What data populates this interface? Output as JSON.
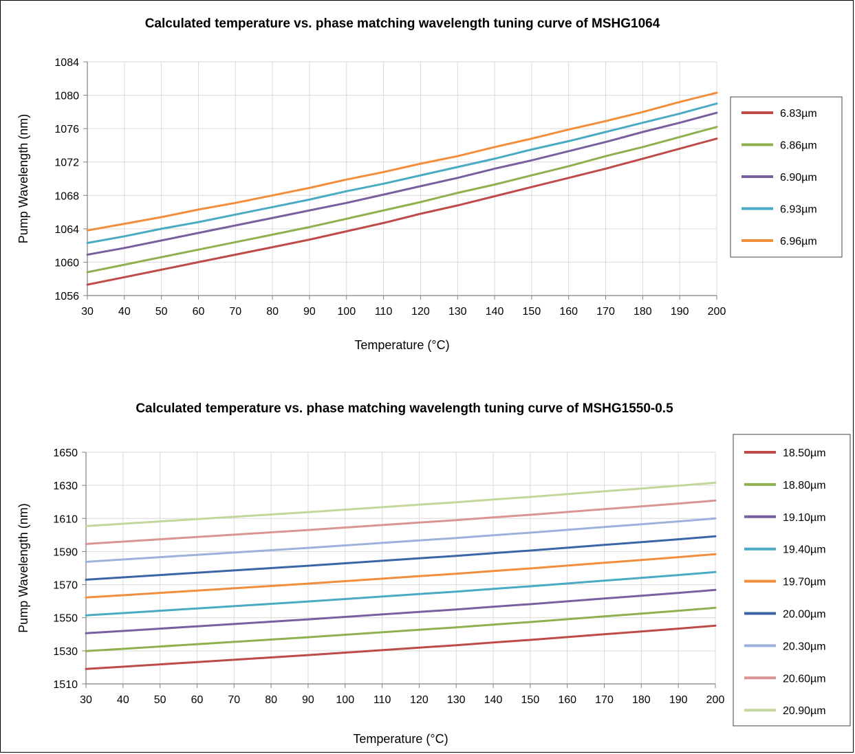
{
  "chart_data": [
    {
      "type": "line",
      "title": "Calculated temperature vs. phase matching wavelength tuning curve of MSHG1064",
      "xlabel": "Temperature (°C)",
      "ylabel": "Pump Wavelength (nm)",
      "xlim": [
        30,
        200
      ],
      "ylim": [
        1056,
        1084
      ],
      "xticks": [
        30,
        40,
        50,
        60,
        70,
        80,
        90,
        100,
        110,
        120,
        130,
        140,
        150,
        160,
        170,
        180,
        190,
        200
      ],
      "yticks": [
        1056,
        1060,
        1064,
        1068,
        1072,
        1076,
        1080,
        1084
      ],
      "grid": true,
      "legend_position": "right",
      "x": [
        30,
        40,
        50,
        60,
        70,
        80,
        90,
        100,
        110,
        120,
        130,
        140,
        150,
        160,
        170,
        180,
        190,
        200
      ],
      "series": [
        {
          "name": "6.83µm",
          "color": "#be4b48",
          "values": [
            1057.3,
            1058.2,
            1059.1,
            1060.0,
            1060.9,
            1061.8,
            1062.7,
            1063.7,
            1064.7,
            1065.8,
            1066.8,
            1067.9,
            1069.0,
            1070.1,
            1071.2,
            1072.4,
            1073.6,
            1074.8
          ]
        },
        {
          "name": "6.86µm",
          "color": "#8fb04f",
          "values": [
            1058.8,
            1059.7,
            1060.6,
            1061.5,
            1062.4,
            1063.3,
            1064.2,
            1065.2,
            1066.2,
            1067.2,
            1068.3,
            1069.3,
            1070.4,
            1071.5,
            1072.7,
            1073.8,
            1075.0,
            1076.2
          ]
        },
        {
          "name": "6.90µm",
          "color": "#7a5fa0",
          "values": [
            1060.9,
            1061.7,
            1062.6,
            1063.5,
            1064.4,
            1065.3,
            1066.2,
            1067.1,
            1068.1,
            1069.1,
            1070.1,
            1071.2,
            1072.2,
            1073.3,
            1074.4,
            1075.6,
            1076.7,
            1077.9
          ]
        },
        {
          "name": "6.93µm",
          "color": "#4aaac4",
          "values": [
            1062.3,
            1063.1,
            1064.0,
            1064.8,
            1065.7,
            1066.6,
            1067.5,
            1068.5,
            1069.4,
            1070.4,
            1071.4,
            1072.4,
            1073.5,
            1074.5,
            1075.6,
            1076.7,
            1077.8,
            1079.0
          ]
        },
        {
          "name": "6.96µm",
          "color": "#f28e3b",
          "values": [
            1063.8,
            1064.6,
            1065.4,
            1066.3,
            1067.1,
            1068.0,
            1068.9,
            1069.9,
            1070.8,
            1071.8,
            1072.7,
            1073.8,
            1074.8,
            1075.9,
            1076.9,
            1078.0,
            1079.2,
            1080.3
          ]
        }
      ]
    },
    {
      "type": "line",
      "title": "Calculated temperature vs. phase matching wavelength tuning curve of MSHG1550-0.5",
      "xlabel": "Temperature (°C)",
      "ylabel": "Pump Wavelength (nm)",
      "xlim": [
        30,
        200
      ],
      "ylim": [
        1510,
        1650
      ],
      "xticks": [
        30,
        40,
        50,
        60,
        70,
        80,
        90,
        100,
        110,
        120,
        130,
        140,
        150,
        160,
        170,
        180,
        190,
        200
      ],
      "yticks": [
        1510,
        1530,
        1550,
        1570,
        1590,
        1610,
        1630,
        1650
      ],
      "grid": true,
      "legend_position": "right",
      "x": [
        30,
        40,
        50,
        60,
        70,
        80,
        90,
        100,
        110,
        120,
        130,
        140,
        150,
        160,
        170,
        180,
        190,
        200
      ],
      "series": [
        {
          "name": "18.50µm",
          "color": "#be4b48",
          "values": [
            1519.0,
            1520.4,
            1521.8,
            1523.2,
            1524.6,
            1526.0,
            1527.4,
            1528.9,
            1530.4,
            1531.9,
            1533.4,
            1535.0,
            1536.6,
            1538.3,
            1540.0,
            1541.7,
            1543.4,
            1545.2
          ]
        },
        {
          "name": "18.80µm",
          "color": "#8fb04f",
          "values": [
            1529.8,
            1531.2,
            1532.6,
            1534.0,
            1535.4,
            1536.8,
            1538.2,
            1539.7,
            1541.2,
            1542.7,
            1544.2,
            1545.8,
            1547.4,
            1549.1,
            1550.8,
            1552.5,
            1554.2,
            1556.0
          ]
        },
        {
          "name": "19.10µm",
          "color": "#7a5fa0",
          "values": [
            1540.6,
            1542.0,
            1543.4,
            1544.8,
            1546.2,
            1547.6,
            1549.0,
            1550.5,
            1552.0,
            1553.5,
            1555.0,
            1556.6,
            1558.2,
            1559.9,
            1561.6,
            1563.3,
            1565.0,
            1566.8
          ]
        },
        {
          "name": "19.40µm",
          "color": "#4aaac4",
          "values": [
            1551.4,
            1552.8,
            1554.2,
            1555.6,
            1557.0,
            1558.4,
            1559.8,
            1561.3,
            1562.8,
            1564.3,
            1565.8,
            1567.4,
            1569.0,
            1570.7,
            1572.4,
            1574.1,
            1575.8,
            1577.6
          ]
        },
        {
          "name": "19.70µm",
          "color": "#f28e3b",
          "values": [
            1562.2,
            1563.6,
            1565.0,
            1566.4,
            1567.8,
            1569.2,
            1570.6,
            1572.1,
            1573.6,
            1575.1,
            1576.6,
            1578.2,
            1579.8,
            1581.5,
            1583.2,
            1584.9,
            1586.6,
            1588.4
          ]
        },
        {
          "name": "20.00µm",
          "color": "#3a66a6",
          "values": [
            1573.0,
            1574.4,
            1575.8,
            1577.2,
            1578.6,
            1580.0,
            1581.4,
            1582.9,
            1584.4,
            1585.9,
            1587.4,
            1589.0,
            1590.6,
            1592.3,
            1594.0,
            1595.7,
            1597.4,
            1599.2
          ]
        },
        {
          "name": "20.30µm",
          "color": "#9db1dc",
          "values": [
            1583.8,
            1585.2,
            1586.6,
            1588.0,
            1589.4,
            1590.8,
            1592.2,
            1593.7,
            1595.2,
            1596.7,
            1598.2,
            1599.8,
            1601.4,
            1603.1,
            1604.8,
            1606.5,
            1608.2,
            1610.0
          ]
        },
        {
          "name": "20.60µm",
          "color": "#d99594",
          "values": [
            1594.6,
            1596.0,
            1597.4,
            1598.8,
            1600.2,
            1601.6,
            1603.0,
            1604.5,
            1606.0,
            1607.5,
            1609.0,
            1610.6,
            1612.2,
            1613.9,
            1615.6,
            1617.3,
            1619.0,
            1620.8
          ]
        },
        {
          "name": "20.90µm",
          "color": "#c4d79b",
          "values": [
            1605.4,
            1606.8,
            1608.2,
            1609.6,
            1611.0,
            1612.4,
            1613.8,
            1615.3,
            1616.8,
            1618.3,
            1619.8,
            1621.4,
            1623.0,
            1624.7,
            1626.4,
            1628.1,
            1629.8,
            1631.6
          ]
        }
      ]
    }
  ]
}
